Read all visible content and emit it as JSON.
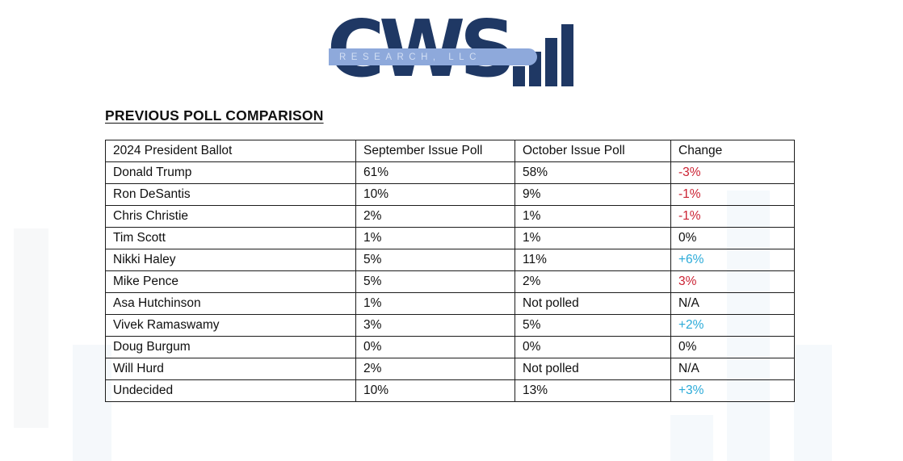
{
  "logo": {
    "wordmark": "CWS",
    "banner_text": "RESEARCH, LLC",
    "navy": "#1f3864",
    "banner_blue": "#8ea9db"
  },
  "title": "PREVIOUS POLL COMPARISON",
  "colors": {
    "negative_red": "#cb2233",
    "positive_cyan": "#2aaad8",
    "neutral_black": "#0f0f0f"
  },
  "table": {
    "headers": [
      "2024 President Ballot",
      "September Issue Poll",
      "October Issue Poll",
      "Change"
    ],
    "rows": [
      {
        "candidate": "Donald Trump",
        "september": "61%",
        "october": "58%",
        "change": "-3%",
        "change_color": "#cb2233"
      },
      {
        "candidate": "Ron DeSantis",
        "september": "10%",
        "october": "9%",
        "change": "-1%",
        "change_color": "#cb2233"
      },
      {
        "candidate": "Chris Christie",
        "september": "2%",
        "october": "1%",
        "change": "-1%",
        "change_color": "#cb2233"
      },
      {
        "candidate": "Tim Scott",
        "september": "1%",
        "october": "1%",
        "change": "0%",
        "change_color": "#0f0f0f"
      },
      {
        "candidate": "Nikki Haley",
        "september": "5%",
        "october": "11%",
        "change": "+6%",
        "change_color": "#2aaad8"
      },
      {
        "candidate": "Mike Pence",
        "september": "5%",
        "october": "2%",
        "change": "3%",
        "change_color": "#cb2233"
      },
      {
        "candidate": "Asa Hutchinson",
        "september": "1%",
        "october": "Not polled",
        "change": "N/A",
        "change_color": "#0f0f0f"
      },
      {
        "candidate": "Vivek Ramaswamy",
        "september": "3%",
        "october": "5%",
        "change": "+2%",
        "change_color": "#2aaad8"
      },
      {
        "candidate": "Doug Burgum",
        "september": "0%",
        "october": "0%",
        "change": "0%",
        "change_color": "#0f0f0f"
      },
      {
        "candidate": "Will Hurd",
        "september": "2%",
        "october": "Not polled",
        "change": "N/A",
        "change_color": "#0f0f0f"
      },
      {
        "candidate": "Undecided",
        "september": "10%",
        "october": "13%",
        "change": "+3%",
        "change_color": "#2aaad8"
      }
    ]
  }
}
